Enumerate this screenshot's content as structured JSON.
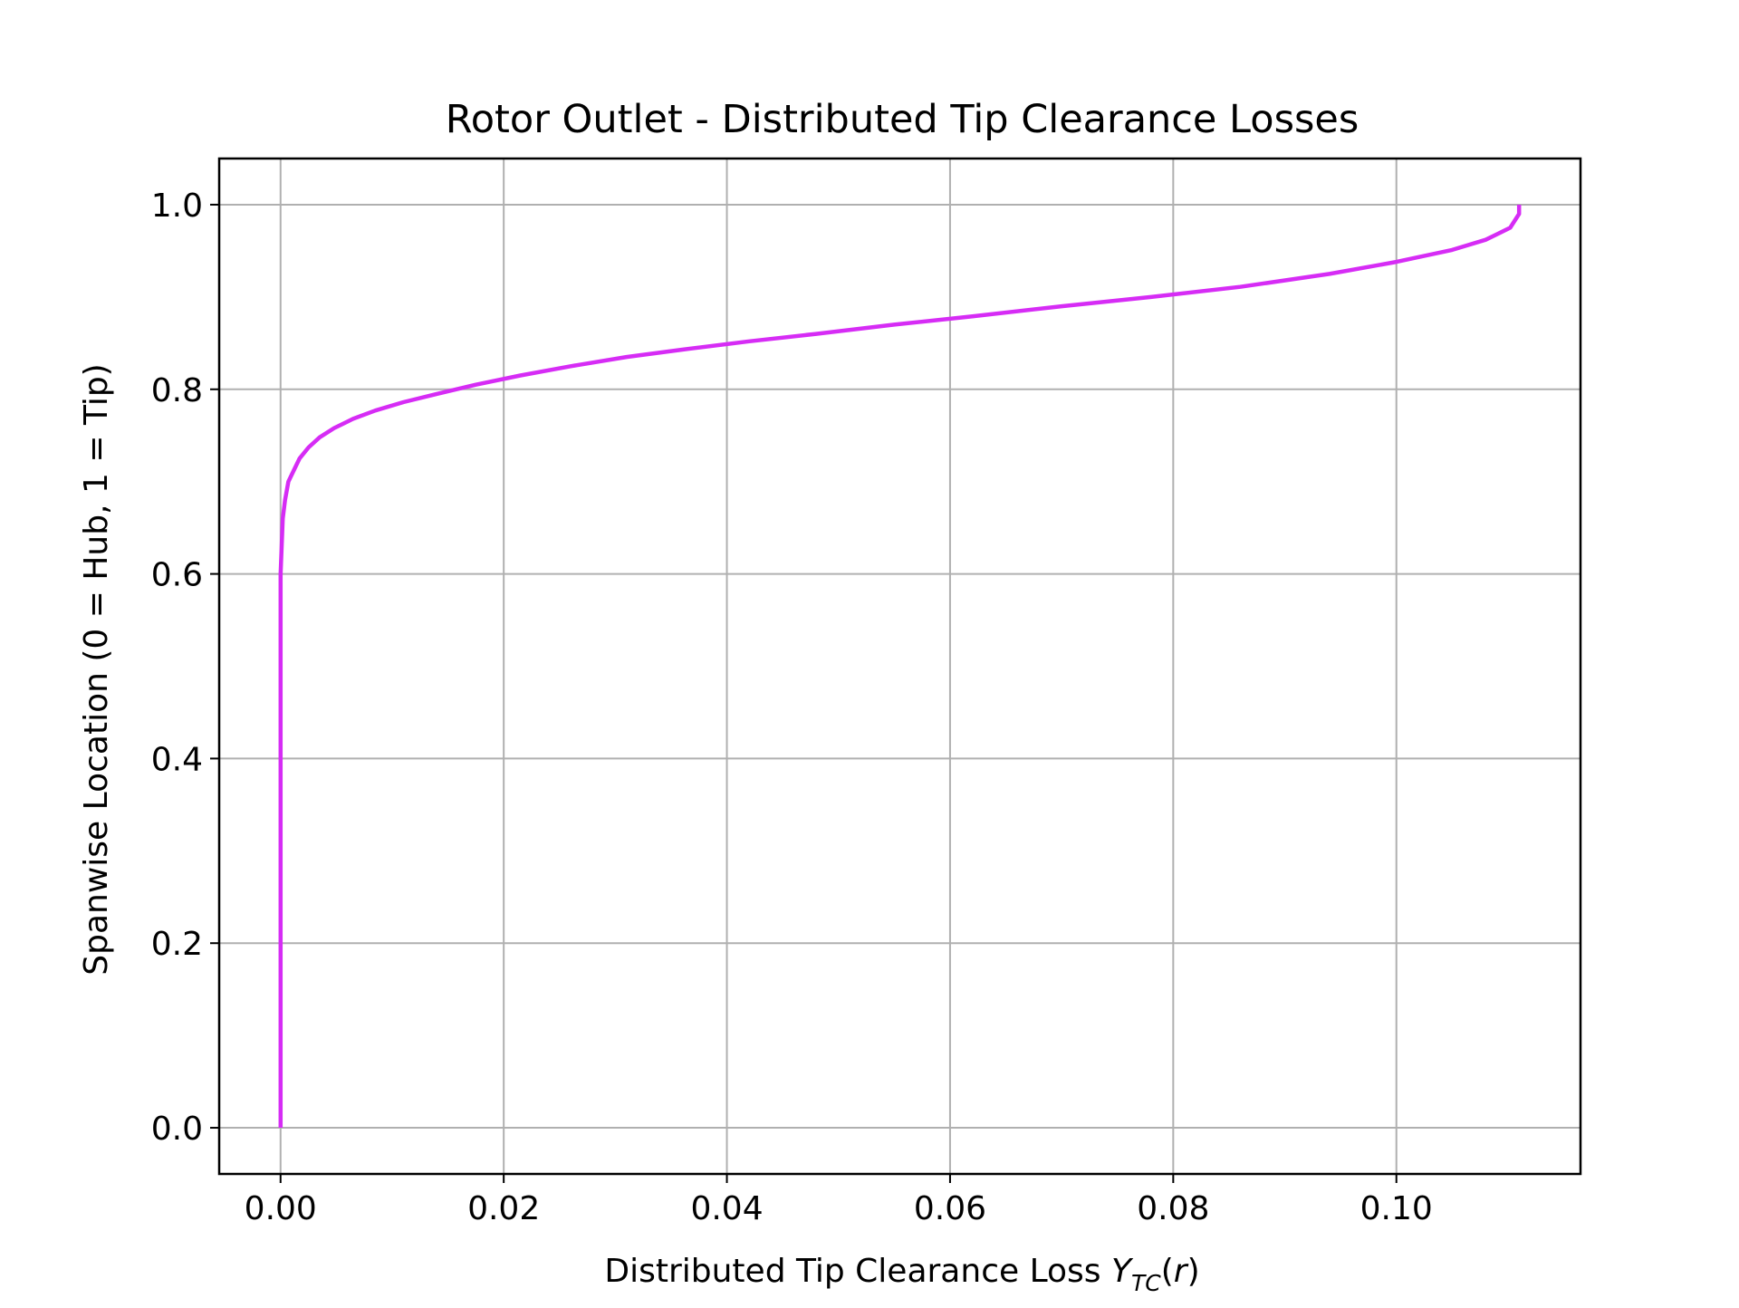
{
  "chart_data": {
    "type": "line",
    "title": "Rotor Outlet - Distributed Tip Clearance Losses",
    "xlabel": {
      "prefix": "Distributed Tip Clearance Loss ",
      "symbol": "Y",
      "subscript": "TC",
      "suffix_open": "(",
      "arg": "r",
      "suffix_close": ")"
    },
    "ylabel": "Spanwise Location (0 = Hub, 1 = Tip)",
    "xlim": [
      -0.0055,
      0.1165
    ],
    "ylim": [
      -0.05,
      1.05
    ],
    "x_ticks": [
      0.0,
      0.02,
      0.04,
      0.06,
      0.08,
      0.1
    ],
    "x_tick_labels": [
      "0.00",
      "0.02",
      "0.04",
      "0.06",
      "0.08",
      "0.10"
    ],
    "y_ticks": [
      0.0,
      0.2,
      0.4,
      0.6,
      0.8,
      1.0
    ],
    "y_tick_labels": [
      "0.0",
      "0.2",
      "0.4",
      "0.6",
      "0.8",
      "1.0"
    ],
    "grid": true,
    "legend": "none",
    "series": [
      {
        "color": "#d62cf5",
        "x": [
          0.0,
          0.0,
          0.0,
          0.0,
          0.0,
          0.0001,
          0.0002,
          0.0004,
          0.0007,
          0.0011,
          0.0017,
          0.0025,
          0.0035,
          0.0048,
          0.0065,
          0.0085,
          0.011,
          0.014,
          0.0175,
          0.0215,
          0.026,
          0.031,
          0.036,
          0.042,
          0.048,
          0.055,
          0.062,
          0.07,
          0.078,
          0.086,
          0.094,
          0.1,
          0.105,
          0.108,
          0.1102,
          0.111,
          0.111
        ],
        "y": [
          0.0,
          0.2,
          0.4,
          0.55,
          0.6,
          0.63,
          0.66,
          0.68,
          0.7,
          0.71,
          0.725,
          0.737,
          0.748,
          0.758,
          0.768,
          0.777,
          0.786,
          0.795,
          0.805,
          0.815,
          0.825,
          0.835,
          0.843,
          0.852,
          0.86,
          0.87,
          0.879,
          0.89,
          0.9,
          0.911,
          0.925,
          0.938,
          0.951,
          0.962,
          0.975,
          0.99,
          1.0
        ]
      }
    ]
  }
}
